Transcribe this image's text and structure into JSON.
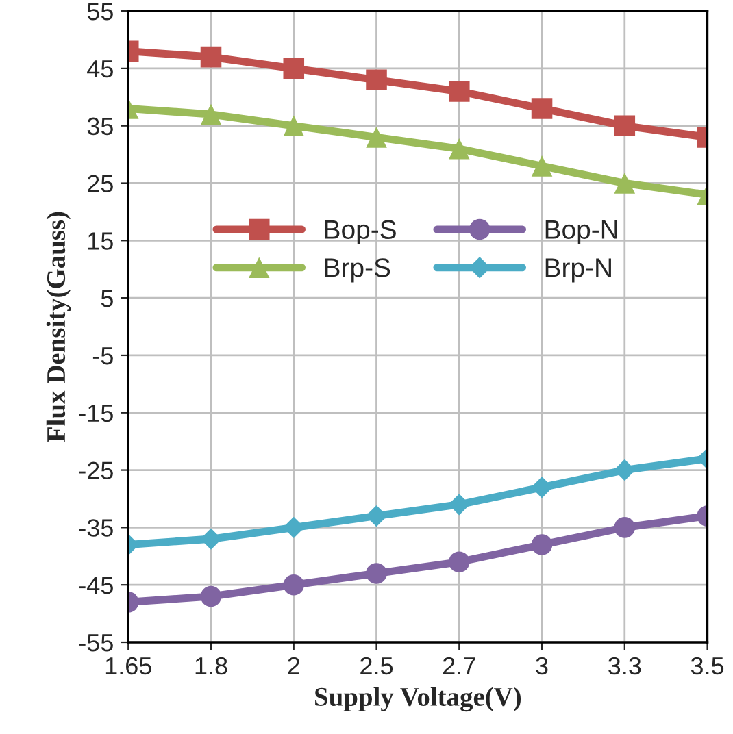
{
  "chart_data": {
    "type": "line",
    "xlabel": "Supply Voltage(V)",
    "ylabel": "Flux Density(Gauss)",
    "categories": [
      "1.65",
      "1.8",
      "2",
      "2.5",
      "2.7",
      "3",
      "3.3",
      "3.5"
    ],
    "series": [
      {
        "name": "Bop-S",
        "color": "#c0504d",
        "marker": "square",
        "values": [
          48,
          47,
          45,
          43,
          41,
          38,
          35,
          33
        ]
      },
      {
        "name": "Brp-S",
        "color": "#9bbb59",
        "marker": "triangle",
        "values": [
          38,
          37,
          35,
          33,
          31,
          28,
          25,
          23
        ]
      },
      {
        "name": "Bop-N",
        "color": "#8064a2",
        "marker": "circle",
        "values": [
          -48,
          -47,
          -45,
          -43,
          -41,
          -38,
          -35,
          -33
        ]
      },
      {
        "name": "Brp-N",
        "color": "#4bacc6",
        "marker": "diamond",
        "values": [
          -38,
          -37,
          -35,
          -33,
          -31,
          -28,
          -25,
          -23
        ]
      }
    ],
    "ylim": [
      -55,
      55
    ],
    "yticks": [
      -55,
      -45,
      -35,
      -25,
      -15,
      -5,
      5,
      15,
      25,
      35,
      45,
      55
    ],
    "grid": true,
    "legend": "center",
    "line_style": "solid"
  }
}
